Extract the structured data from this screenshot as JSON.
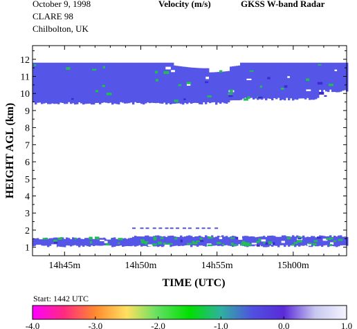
{
  "header": {
    "date": "October   9, 1998",
    "campaign": "CLARE 98",
    "site": "Chilbolton, UK",
    "product": "Velocity (m/s)",
    "instrument": "GKSS  W-band Radar"
  },
  "chart_data": {
    "type": "heatmap",
    "title": "Velocity (m/s)",
    "xlabel": "TIME (UTC)",
    "ylabel": "HEIGHT AGL (km)",
    "x_ticks": [
      "14h45m",
      "14h50m",
      "14h55m",
      "15h00m"
    ],
    "x_tick_minutes": [
      45,
      50,
      55,
      60
    ],
    "xlim_minutes": [
      42.9,
      63.5
    ],
    "y_ticks": [
      1,
      2,
      3,
      4,
      5,
      6,
      7,
      8,
      9,
      10,
      11,
      12
    ],
    "ylim": [
      0.5,
      12.8
    ],
    "start_label": "Start: 1442 UTC",
    "colorbar": {
      "ticks": [
        "-4.0",
        "-3.0",
        "-2.0",
        "-1.0",
        "0.0",
        "1.0"
      ],
      "range": [
        -4.0,
        1.0
      ],
      "colors": [
        "#ff00ff",
        "#ff2a80",
        "#ff8a30",
        "#ffe060",
        "#60e060",
        "#00e000",
        "#2fb0a0",
        "#5050e0",
        "#5a2ad8",
        "#c8c8f0",
        "#f4f4ff"
      ]
    },
    "layers": [
      {
        "name": "upper cloud",
        "base_km": 9.5,
        "top_km": 11.8,
        "velocity_ms": -0.3
      },
      {
        "name": "lower cloud",
        "base_km": 1.0,
        "top_km": 1.7,
        "velocity_ms": -0.5
      }
    ],
    "band_color": "#5555e8",
    "accent_color": "#22bb55"
  }
}
